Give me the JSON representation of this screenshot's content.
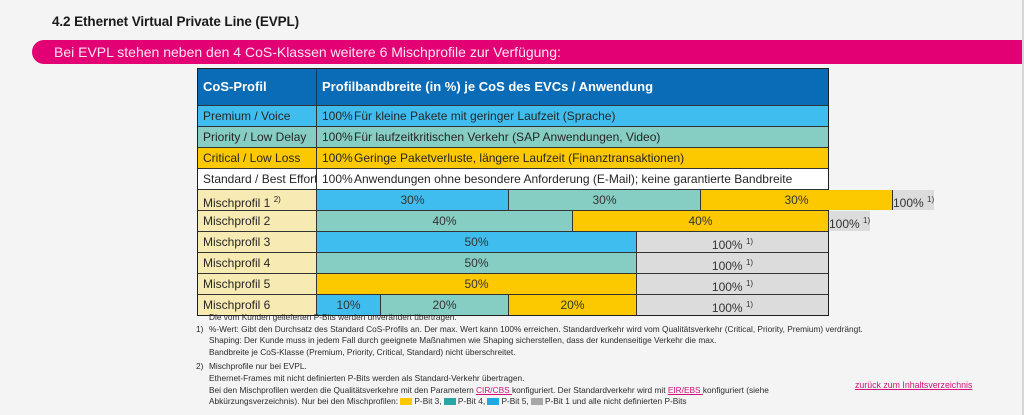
{
  "section_title": "4.2 Ethernet Virtual Private Line (EVPL)",
  "banner_text": "Bei EVPL stehen neben den 4 CoS-Klassen weitere 6 Mischprofile zur Verfügung:",
  "colors": {
    "brand_magenta": "#e20074",
    "header_blue": "#0a6bb6",
    "premium": "#3fbdee",
    "priority": "#86cdc3",
    "critical": "#fcc800",
    "standard": "#ffffff",
    "mischprofil_label": "#f7eab3",
    "rest_gray": "#dcdcdc"
  },
  "table": {
    "header": {
      "col1": "CoS-Profil",
      "col2": "Profilbandbreite (in %) je CoS des EVCs / Anwendung"
    },
    "cos_rows": [
      {
        "label": "Premium / Voice",
        "percent": "100%",
        "description": "Für kleine Pakete mit geringer Laufzeit (Sprache)",
        "class": "premium"
      },
      {
        "label": "Priority / Low Delay",
        "percent": "100%",
        "description": "Für laufzeitkritischen Verkehr (SAP Anwendungen, Video)",
        "class": "priority"
      },
      {
        "label": "Critical / Low Loss",
        "percent": "100%",
        "description": "Geringe Paketverluste, längere Laufzeit (Finanztransaktionen)",
        "class": "critical"
      },
      {
        "label": "Standard / Best Effort",
        "percent": "100%",
        "description": "Anwendungen ohne besondere Anforderung (E-Mail); keine garantierte Bandbreite",
        "class": "standard"
      }
    ],
    "misch_rows": [
      {
        "label": "Mischprofil 1",
        "label_sup": "2)",
        "segments": [
          {
            "class": "premium",
            "value": 30,
            "text": "30%"
          },
          {
            "class": "priority",
            "value": 30,
            "text": "30%"
          },
          {
            "class": "critical",
            "value": 30,
            "text": "30%"
          },
          {
            "class": "rest",
            "value": 100,
            "text": "100%",
            "sup": "1)"
          }
        ]
      },
      {
        "label": "Mischprofil 2",
        "segments": [
          {
            "class": "priority",
            "value": 40,
            "text": "40%"
          },
          {
            "class": "critical",
            "value": 40,
            "text": "40%"
          },
          {
            "class": "rest",
            "value": 100,
            "text": "100%",
            "sup": "1)"
          }
        ]
      },
      {
        "label": "Mischprofil 3",
        "segments": [
          {
            "class": "premium",
            "value": 50,
            "text": "50%"
          },
          {
            "class": "rest",
            "value": 100,
            "text": "100%",
            "sup": "1)"
          }
        ]
      },
      {
        "label": "Mischprofil 4",
        "segments": [
          {
            "class": "priority",
            "value": 50,
            "text": "50%"
          },
          {
            "class": "rest",
            "value": 100,
            "text": "100%",
            "sup": "1)"
          }
        ]
      },
      {
        "label": "Mischprofil 5",
        "segments": [
          {
            "class": "critical",
            "value": 50,
            "text": "50%"
          },
          {
            "class": "rest",
            "value": 100,
            "text": "100%",
            "sup": "1)"
          }
        ]
      },
      {
        "label": "Mischprofil 6",
        "segments": [
          {
            "class": "premium",
            "value": 10,
            "text": "10%"
          },
          {
            "class": "priority",
            "value": 20,
            "text": "20%"
          },
          {
            "class": "critical",
            "value": 20,
            "text": "20%"
          },
          {
            "class": "rest",
            "value": 100,
            "text": "100%",
            "sup": "1)"
          }
        ]
      }
    ]
  },
  "footnotes": {
    "intro": "Die vom Kunden gelieferten P-Bits werden unverändert übertragen.",
    "fn1_num": "1)",
    "fn1_line1": "%-Wert: Gibt den Durchsatz des Standard CoS-Profils an. Der max. Wert kann 100% erreichen. Standardverkehr wird vom Qualitätsverkehr (Critical, Priority, Premium) verdrängt.",
    "fn1_line2": "Shaping: Der Kunde muss in jedem Fall durch geeignete Maßnahmen wie Shaping sicherstellen, dass der kundenseitige Verkehr die max.",
    "fn1_line3": "Bandbreite je CoS-Klasse (Premium, Priority, Critical, Standard) nicht überschreitet.",
    "fn2_num": "2)",
    "fn2_line1": "Mischprofile nur bei EVPL.",
    "fn2_line2": "Ethernet-Frames mit nicht definierten P-Bits werden als Standard-Verkehr übertragen.",
    "fn2_line3_a": "Bei den Mischprofilen werden die Qualitätsverkehre mit den Parametern ",
    "fn2_link_cir": "CIR/CBS ",
    "fn2_line3_b": "konfiguriert. Der Standardverkehr wird mit ",
    "fn2_link_eir": "EIR/EBS ",
    "fn2_line3_c": "konfiguriert (siehe",
    "fn2_line4_a": "Abkürzungsverzeichnis). Nur bei den Mischprofilen: ",
    "legend": [
      {
        "class": "critical",
        "label": "P-Bit 3,"
      },
      {
        "class": "priority",
        "label": "P-Bit 4,"
      },
      {
        "class": "premium",
        "label": "P-Bit 5,"
      },
      {
        "class": "gray",
        "label": "P-Bit 1 und alle nicht definierten P-Bits"
      }
    ]
  },
  "back_link": "zurück zum Inhaltsverzeichnis "
}
